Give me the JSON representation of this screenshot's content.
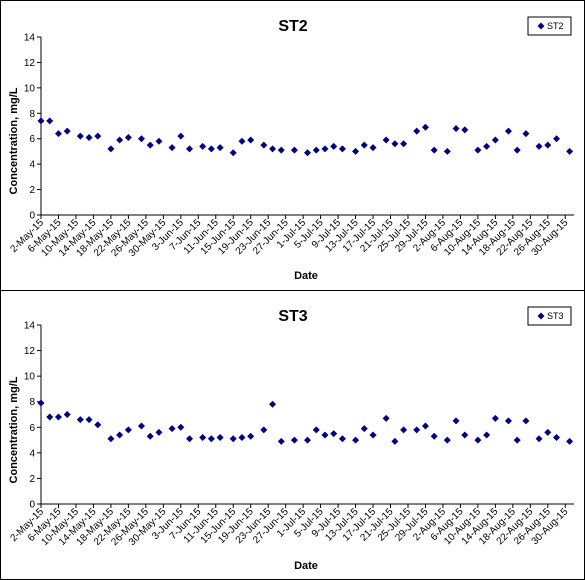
{
  "colors": {
    "marker": "#000080",
    "axis": "#000000",
    "background": "#ffffff"
  },
  "chart_data": [
    {
      "type": "scatter",
      "title": "ST2",
      "xlabel": "Date",
      "ylabel": "Concentration, mg/L",
      "ylim": [
        0,
        14
      ],
      "yticks": [
        0,
        2,
        4,
        6,
        8,
        10,
        12,
        14
      ],
      "xlim": [
        "2015-05-02",
        "2015-09-01"
      ],
      "xtick_labels": [
        "2-May-15",
        "6-May-15",
        "10-May-15",
        "14-May-15",
        "18-May-15",
        "22-May-15",
        "26-May-15",
        "30-May-15",
        "3-Jun-15",
        "7-Jun-15",
        "11-Jun-15",
        "15-Jun-15",
        "19-Jun-15",
        "23-Jun-15",
        "27-Jun-15",
        "1-Jul-15",
        "5-Jul-15",
        "9-Jul-15",
        "13-Jul-15",
        "17-Jul-15",
        "21-Jul-15",
        "25-Jul-15",
        "29-Jul-15",
        "2-Aug-15",
        "6-Aug-15",
        "10-Aug-15",
        "14-Aug-15",
        "18-Aug-15",
        "22-Aug-15",
        "26-Aug-15",
        "30-Aug-15"
      ],
      "grid": false,
      "legend_position": "top-right",
      "series": [
        {
          "name": "ST2",
          "marker": "diamond",
          "points": [
            [
              "2015-05-02",
              7.4
            ],
            [
              "2015-05-04",
              7.4
            ],
            [
              "2015-05-06",
              6.4
            ],
            [
              "2015-05-08",
              6.6
            ],
            [
              "2015-05-11",
              6.2
            ],
            [
              "2015-05-13",
              6.1
            ],
            [
              "2015-05-15",
              6.2
            ],
            [
              "2015-05-18",
              5.2
            ],
            [
              "2015-05-20",
              5.9
            ],
            [
              "2015-05-22",
              6.1
            ],
            [
              "2015-05-25",
              6.0
            ],
            [
              "2015-05-27",
              5.5
            ],
            [
              "2015-05-29",
              5.8
            ],
            [
              "2015-06-01",
              5.3
            ],
            [
              "2015-06-03",
              6.2
            ],
            [
              "2015-06-05",
              5.2
            ],
            [
              "2015-06-08",
              5.4
            ],
            [
              "2015-06-10",
              5.2
            ],
            [
              "2015-06-12",
              5.3
            ],
            [
              "2015-06-15",
              4.9
            ],
            [
              "2015-06-17",
              5.8
            ],
            [
              "2015-06-19",
              5.9
            ],
            [
              "2015-06-22",
              5.5
            ],
            [
              "2015-06-24",
              5.2
            ],
            [
              "2015-06-26",
              5.1
            ],
            [
              "2015-06-29",
              5.1
            ],
            [
              "2015-07-02",
              4.9
            ],
            [
              "2015-07-04",
              5.1
            ],
            [
              "2015-07-06",
              5.2
            ],
            [
              "2015-07-08",
              5.4
            ],
            [
              "2015-07-10",
              5.2
            ],
            [
              "2015-07-13",
              5.0
            ],
            [
              "2015-07-15",
              5.5
            ],
            [
              "2015-07-17",
              5.3
            ],
            [
              "2015-07-20",
              5.9
            ],
            [
              "2015-07-22",
              5.6
            ],
            [
              "2015-07-24",
              5.6
            ],
            [
              "2015-07-27",
              6.6
            ],
            [
              "2015-07-29",
              6.9
            ],
            [
              "2015-07-31",
              5.1
            ],
            [
              "2015-08-03",
              5.0
            ],
            [
              "2015-08-05",
              6.8
            ],
            [
              "2015-08-07",
              6.7
            ],
            [
              "2015-08-10",
              5.1
            ],
            [
              "2015-08-12",
              5.4
            ],
            [
              "2015-08-14",
              5.9
            ],
            [
              "2015-08-17",
              6.6
            ],
            [
              "2015-08-19",
              5.1
            ],
            [
              "2015-08-21",
              6.4
            ],
            [
              "2015-08-24",
              5.4
            ],
            [
              "2015-08-26",
              5.5
            ],
            [
              "2015-08-28",
              6.0
            ],
            [
              "2015-08-31",
              5.0
            ]
          ]
        }
      ]
    },
    {
      "type": "scatter",
      "title": "ST3",
      "xlabel": "Date",
      "ylabel": "Concentration, mg/L",
      "ylim": [
        0,
        14
      ],
      "yticks": [
        0,
        2,
        4,
        6,
        8,
        10,
        12,
        14
      ],
      "xlim": [
        "2015-05-02",
        "2015-09-01"
      ],
      "xtick_labels": [
        "2-May-15",
        "6-May-15",
        "10-May-15",
        "14-May-15",
        "18-May-15",
        "22-May-15",
        "26-May-15",
        "30-May-15",
        "3-Jun-15",
        "7-Jun-15",
        "11-Jun-15",
        "15-Jun-15",
        "19-Jun-15",
        "23-Jun-15",
        "27-Jun-15",
        "1-Jul-15",
        "5-Jul-15",
        "9-Jul-15",
        "13-Jul-15",
        "17-Jul-15",
        "21-Jul-15",
        "25-Jul-15",
        "29-Jul-15",
        "2-Aug-15",
        "6-Aug-15",
        "10-Aug-15",
        "14-Aug-15",
        "18-Aug-15",
        "22-Aug-15",
        "26-Aug-15",
        "30-Aug-15"
      ],
      "grid": false,
      "legend_position": "top-right",
      "series": [
        {
          "name": "ST3",
          "marker": "diamond",
          "points": [
            [
              "2015-05-02",
              7.9
            ],
            [
              "2015-05-04",
              6.8
            ],
            [
              "2015-05-06",
              6.8
            ],
            [
              "2015-05-08",
              7.0
            ],
            [
              "2015-05-11",
              6.6
            ],
            [
              "2015-05-13",
              6.6
            ],
            [
              "2015-05-15",
              6.2
            ],
            [
              "2015-05-18",
              5.1
            ],
            [
              "2015-05-20",
              5.4
            ],
            [
              "2015-05-22",
              5.8
            ],
            [
              "2015-05-25",
              6.1
            ],
            [
              "2015-05-27",
              5.3
            ],
            [
              "2015-05-29",
              5.6
            ],
            [
              "2015-06-01",
              5.9
            ],
            [
              "2015-06-03",
              6.0
            ],
            [
              "2015-06-05",
              5.1
            ],
            [
              "2015-06-08",
              5.2
            ],
            [
              "2015-06-10",
              5.1
            ],
            [
              "2015-06-12",
              5.2
            ],
            [
              "2015-06-15",
              5.1
            ],
            [
              "2015-06-17",
              5.2
            ],
            [
              "2015-06-19",
              5.3
            ],
            [
              "2015-06-22",
              5.8
            ],
            [
              "2015-06-24",
              7.8
            ],
            [
              "2015-06-26",
              4.9
            ],
            [
              "2015-06-29",
              5.0
            ],
            [
              "2015-07-02",
              5.0
            ],
            [
              "2015-07-04",
              5.8
            ],
            [
              "2015-07-06",
              5.4
            ],
            [
              "2015-07-08",
              5.5
            ],
            [
              "2015-07-10",
              5.1
            ],
            [
              "2015-07-13",
              5.0
            ],
            [
              "2015-07-15",
              5.9
            ],
            [
              "2015-07-17",
              5.4
            ],
            [
              "2015-07-20",
              6.7
            ],
            [
              "2015-07-22",
              4.9
            ],
            [
              "2015-07-24",
              5.8
            ],
            [
              "2015-07-27",
              5.8
            ],
            [
              "2015-07-29",
              6.1
            ],
            [
              "2015-07-31",
              5.3
            ],
            [
              "2015-08-03",
              5.0
            ],
            [
              "2015-08-05",
              6.5
            ],
            [
              "2015-08-07",
              5.4
            ],
            [
              "2015-08-10",
              5.0
            ],
            [
              "2015-08-12",
              5.4
            ],
            [
              "2015-08-14",
              6.7
            ],
            [
              "2015-08-17",
              6.5
            ],
            [
              "2015-08-19",
              5.0
            ],
            [
              "2015-08-21",
              6.5
            ],
            [
              "2015-08-24",
              5.1
            ],
            [
              "2015-08-26",
              5.6
            ],
            [
              "2015-08-28",
              5.2
            ],
            [
              "2015-08-31",
              4.9
            ]
          ]
        }
      ]
    }
  ]
}
